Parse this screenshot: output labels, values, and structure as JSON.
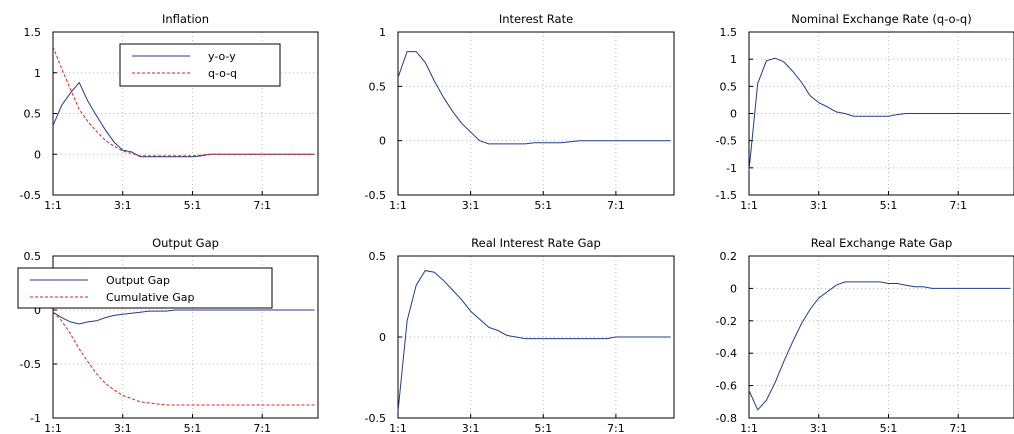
{
  "chart_data": [
    {
      "type": "line",
      "title": "Inflation",
      "xlabel": "",
      "ylabel": "",
      "x_ticks": [
        "1:1",
        "3:1",
        "5:1",
        "7:1"
      ],
      "ylim": [
        -0.5,
        1.5
      ],
      "y_ticks": [
        "-0.5",
        "0",
        "0.5",
        "1",
        "1.5"
      ],
      "grid": true,
      "legend": "top-center",
      "series": [
        {
          "name": "y-o-y",
          "color": "#1f3d8c",
          "dash": "solid",
          "values": [
            0.35,
            0.6,
            0.75,
            0.88,
            0.65,
            0.47,
            0.3,
            0.15,
            0.05,
            0.03,
            -0.03,
            -0.03,
            -0.03,
            -0.03,
            -0.03,
            -0.03,
            -0.03,
            -0.02,
            0,
            0,
            0,
            0,
            0,
            0,
            0,
            0,
            0,
            0,
            0,
            0,
            0
          ]
        },
        {
          "name": "q-o-q",
          "color": "#e0201b",
          "dash": "dashed",
          "values": [
            1.32,
            1.05,
            0.8,
            0.55,
            0.4,
            0.28,
            0.17,
            0.1,
            0.04,
            0.01,
            -0.02,
            -0.02,
            -0.02,
            -0.02,
            -0.02,
            -0.02,
            -0.02,
            -0.01,
            0,
            0,
            0,
            0,
            0,
            0,
            0,
            0,
            0,
            0,
            0,
            0,
            0
          ]
        }
      ]
    },
    {
      "type": "line",
      "title": "Interest Rate",
      "xlabel": "",
      "ylabel": "",
      "x_ticks": [
        "1:1",
        "3:1",
        "5:1",
        "7:1"
      ],
      "ylim": [
        -0.5,
        1
      ],
      "y_ticks": [
        "-0.5",
        "0",
        "0.5",
        "1"
      ],
      "grid": true,
      "series": [
        {
          "name": "",
          "color": "#1f3d8c",
          "dash": "solid",
          "values": [
            0.58,
            0.82,
            0.82,
            0.72,
            0.55,
            0.4,
            0.27,
            0.16,
            0.08,
            0,
            -0.03,
            -0.03,
            -0.03,
            -0.03,
            -0.03,
            -0.02,
            -0.02,
            -0.02,
            -0.02,
            -0.01,
            0,
            0,
            0,
            0,
            0,
            0,
            0,
            0,
            0,
            0,
            0
          ]
        }
      ]
    },
    {
      "type": "line",
      "title": "Nominal Exchange Rate (q-o-q)",
      "xlabel": "",
      "ylabel": "",
      "x_ticks": [
        "1:1",
        "3:1",
        "5:1",
        "7:1"
      ],
      "ylim": [
        -1.5,
        1.5
      ],
      "y_ticks": [
        "-1.5",
        "-1",
        "-0.5",
        "0",
        "0.5",
        "1",
        "1.5"
      ],
      "grid": true,
      "series": [
        {
          "name": "",
          "color": "#1f3d8c",
          "dash": "solid",
          "values": [
            -1.05,
            0.55,
            0.97,
            1.02,
            0.95,
            0.78,
            0.58,
            0.33,
            0.2,
            0.12,
            0.03,
            0,
            -0.05,
            -0.05,
            -0.05,
            -0.05,
            -0.05,
            -0.02,
            0,
            0,
            0,
            0,
            0,
            0,
            0,
            0,
            0,
            0,
            0,
            0,
            0
          ]
        }
      ]
    },
    {
      "type": "line",
      "title": "Output Gap",
      "xlabel": "",
      "ylabel": "",
      "x_ticks": [
        "1:1",
        "3:1",
        "5:1",
        "7:1"
      ],
      "ylim": [
        -1,
        0.5
      ],
      "y_ticks": [
        "-1",
        "-0.5",
        "0",
        "0.5"
      ],
      "grid": true,
      "legend": "top-left",
      "series": [
        {
          "name": "Output Gap",
          "color": "#1f3d8c",
          "dash": "solid",
          "values": [
            -0.02,
            -0.07,
            -0.11,
            -0.13,
            -0.11,
            -0.1,
            -0.07,
            -0.05,
            -0.04,
            -0.03,
            -0.02,
            -0.01,
            -0.01,
            -0.01,
            0,
            0,
            0,
            0,
            0,
            0,
            0,
            0,
            0,
            0,
            0,
            0,
            0,
            0,
            0,
            0,
            0
          ]
        },
        {
          "name": "Cumulative Gap",
          "color": "#e0201b",
          "dash": "dashed",
          "values": [
            -0.02,
            -0.1,
            -0.22,
            -0.36,
            -0.48,
            -0.59,
            -0.68,
            -0.74,
            -0.79,
            -0.82,
            -0.85,
            -0.86,
            -0.87,
            -0.88,
            -0.88,
            -0.88,
            -0.88,
            -0.88,
            -0.88,
            -0.88,
            -0.88,
            -0.88,
            -0.88,
            -0.88,
            -0.88,
            -0.88,
            -0.88,
            -0.88,
            -0.88,
            -0.88,
            -0.88
          ]
        }
      ]
    },
    {
      "type": "line",
      "title": "Real Interest Rate Gap",
      "xlabel": "",
      "ylabel": "",
      "x_ticks": [
        "1:1",
        "3:1",
        "5:1",
        "7:1"
      ],
      "ylim": [
        -0.5,
        0.5
      ],
      "y_ticks": [
        "-0.5",
        "0",
        "0.5"
      ],
      "grid": true,
      "series": [
        {
          "name": "",
          "color": "#1f3d8c",
          "dash": "solid",
          "values": [
            -0.46,
            0.1,
            0.32,
            0.41,
            0.4,
            0.35,
            0.29,
            0.23,
            0.16,
            0.11,
            0.06,
            0.04,
            0.01,
            0,
            -0.01,
            -0.01,
            -0.01,
            -0.01,
            -0.01,
            -0.01,
            -0.01,
            -0.01,
            -0.01,
            -0.01,
            0,
            0,
            0,
            0,
            0,
            0,
            0
          ]
        }
      ]
    },
    {
      "type": "line",
      "title": "Real Exchange Rate Gap",
      "xlabel": "",
      "ylabel": "",
      "x_ticks": [
        "1:1",
        "3:1",
        "5:1",
        "7:1"
      ],
      "ylim": [
        -0.8,
        0.2
      ],
      "y_ticks": [
        "-0.8",
        "-0.6",
        "-0.4",
        "-0.2",
        "0",
        "0.2"
      ],
      "grid": true,
      "series": [
        {
          "name": "",
          "color": "#1f3d8c",
          "dash": "solid",
          "values": [
            -0.63,
            -0.75,
            -0.69,
            -0.58,
            -0.45,
            -0.33,
            -0.22,
            -0.13,
            -0.06,
            -0.02,
            0.02,
            0.04,
            0.04,
            0.04,
            0.04,
            0.04,
            0.03,
            0.03,
            0.02,
            0.01,
            0.01,
            0,
            0,
            0,
            0,
            0,
            0,
            0,
            0,
            0,
            0
          ]
        }
      ]
    }
  ]
}
